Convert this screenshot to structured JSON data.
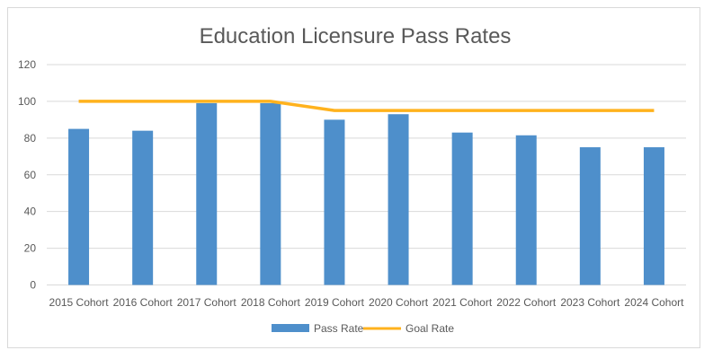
{
  "chart_data": {
    "type": "bar",
    "title": "Education Licensure Pass Rates",
    "categories": [
      "2015 Cohort",
      "2016 Cohort",
      "2017 Cohort",
      "2018 Cohort",
      "2019 Cohort",
      "2020 Cohort",
      "2021 Cohort",
      "2022 Cohort",
      "2023 Cohort",
      "2024 Cohort"
    ],
    "series": [
      {
        "name": "Pass Rate",
        "type": "bar",
        "color": "#4e8fcb",
        "values": [
          85,
          84,
          99,
          99,
          90,
          93,
          83,
          81.5,
          75,
          75
        ]
      },
      {
        "name": "Goal Rate",
        "type": "line",
        "color": "#ffb21d",
        "values": [
          100,
          100,
          100,
          100,
          95,
          95,
          95,
          95,
          95,
          95
        ]
      }
    ],
    "ylim": [
      0,
      120
    ],
    "yticks": [
      0,
      20,
      40,
      60,
      80,
      100,
      120
    ],
    "grid": true,
    "legend": "bottom"
  }
}
